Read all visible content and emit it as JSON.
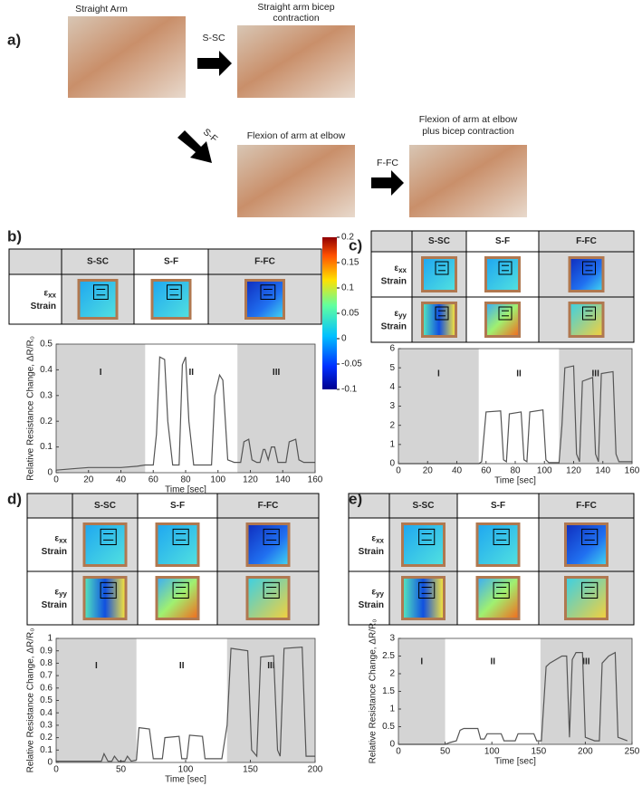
{
  "panel_a": {
    "label": "a)",
    "photos": [
      {
        "caption": [
          "Straight Arm"
        ]
      },
      {
        "caption": [
          "Straight arm bicep",
          "contraction"
        ]
      },
      {
        "caption": [
          "Flexion of arm at elbow"
        ]
      },
      {
        "caption": [
          "Flexion of arm at elbow",
          "plus bicep contraction"
        ]
      }
    ],
    "arrows": [
      "S-SC",
      "S-F",
      "F-FC"
    ]
  },
  "colorbar": {
    "lim": [
      -0.1,
      0.2
    ],
    "ticks": [
      0.2,
      0.15,
      0.1,
      0.05,
      0,
      -0.05,
      -0.1
    ]
  },
  "tables": [
    {
      "columns": [
        "S-SC",
        "S-F",
        "F-FC"
      ],
      "rows": [
        {
          "symbol": "ε",
          "sub": "xx",
          "text": "Strain"
        }
      ]
    },
    {
      "columns": [
        "S-SC",
        "S-F",
        "F-FC"
      ],
      "rows": [
        {
          "symbol": "ε",
          "sub": "xx",
          "text": "Strain"
        },
        {
          "symbol": "ε",
          "sub": "yy",
          "text": "Strain"
        }
      ]
    },
    {
      "columns": [
        "S-SC",
        "S-F",
        "F-FC"
      ],
      "rows": [
        {
          "symbol": "ε",
          "sub": "xx",
          "text": "Strain"
        },
        {
          "symbol": "ε",
          "sub": "yy",
          "text": "Strain"
        }
      ]
    },
    {
      "columns": [
        "S-SC",
        "S-F",
        "F-FC"
      ],
      "rows": [
        {
          "symbol": "ε",
          "sub": "xx",
          "text": "Strain"
        },
        {
          "symbol": "ε",
          "sub": "yy",
          "text": "Strain"
        }
      ]
    }
  ],
  "chart_data": [
    {
      "type": "line",
      "panel": "b)",
      "xlabel": "Time [sec]",
      "ylabel": "Relative Resistance Change, ΔR/R₀",
      "color": "#555555",
      "xlim": [
        0,
        160
      ],
      "ylim": [
        0,
        0.5
      ],
      "xticks": [
        0,
        20,
        40,
        60,
        80,
        100,
        120,
        140,
        160
      ],
      "yticks": [
        0,
        0.1,
        0.2,
        0.3,
        0.4,
        0.5
      ],
      "regions": [
        {
          "label": "I",
          "range": [
            0,
            55
          ],
          "shaded": true
        },
        {
          "label": "II",
          "range": [
            55,
            112
          ],
          "shaded": false
        },
        {
          "label": "III",
          "range": [
            112,
            160
          ],
          "shaded": true
        }
      ],
      "x": [
        0,
        10,
        20,
        30,
        40,
        50,
        55,
        60,
        62,
        64,
        67,
        69,
        72,
        76,
        78,
        80,
        82,
        85,
        90,
        96,
        98,
        101,
        103,
        106,
        110,
        114,
        116,
        119,
        121,
        124,
        126,
        128,
        129,
        131,
        133,
        135,
        137,
        140,
        142,
        144,
        148,
        150,
        153,
        160
      ],
      "values": [
        0.01,
        0.015,
        0.02,
        0.02,
        0.02,
        0.025,
        0.03,
        0.03,
        0.15,
        0.45,
        0.44,
        0.2,
        0.03,
        0.03,
        0.42,
        0.45,
        0.2,
        0.03,
        0.03,
        0.03,
        0.3,
        0.38,
        0.36,
        0.05,
        0.04,
        0.04,
        0.12,
        0.13,
        0.05,
        0.04,
        0.04,
        0.09,
        0.09,
        0.05,
        0.1,
        0.1,
        0.04,
        0.04,
        0.04,
        0.12,
        0.13,
        0.05,
        0.04,
        0.04
      ]
    },
    {
      "type": "line",
      "panel": "c)",
      "xlabel": "Time [sec]",
      "color": "#555555",
      "xlim": [
        0,
        160
      ],
      "ylim": [
        0,
        6
      ],
      "xticks": [
        0,
        20,
        40,
        60,
        80,
        100,
        120,
        140,
        160
      ],
      "yticks": [
        0,
        1,
        2,
        3,
        4,
        5,
        6
      ],
      "regions": [
        {
          "label": "I",
          "range": [
            0,
            55
          ],
          "shaded": true
        },
        {
          "label": "II",
          "range": [
            55,
            110
          ],
          "shaded": false
        },
        {
          "label": "III",
          "range": [
            110,
            160
          ],
          "shaded": true
        }
      ],
      "x": [
        0,
        20,
        40,
        55,
        57,
        60,
        70,
        72,
        74,
        76,
        84,
        86,
        88,
        90,
        99,
        101,
        103,
        110,
        112,
        114,
        120,
        122,
        124,
        126,
        133,
        135,
        137,
        139,
        147,
        149,
        151,
        160
      ],
      "values": [
        0,
        0,
        0,
        0,
        0.1,
        2.7,
        2.75,
        0.2,
        0.1,
        2.6,
        2.7,
        0.2,
        0.1,
        2.7,
        2.8,
        0.2,
        0.05,
        0.05,
        2.0,
        5.0,
        5.1,
        0.5,
        0.1,
        4.3,
        4.5,
        0.5,
        0.1,
        4.7,
        4.8,
        0.5,
        0.1,
        0.1
      ]
    },
    {
      "type": "line",
      "panel": "d)",
      "xlabel": "Time [sec]",
      "ylabel": "Relative Resistance Change, ΔR/R₀",
      "color": "#555555",
      "xlim": [
        0,
        200
      ],
      "ylim": [
        0,
        1
      ],
      "xticks": [
        0,
        50,
        100,
        150,
        200
      ],
      "yticks": [
        0,
        0.1,
        0.2,
        0.3,
        0.4,
        0.5,
        0.6,
        0.7,
        0.8,
        0.9,
        1
      ],
      "regions": [
        {
          "label": "I",
          "range": [
            0,
            62
          ],
          "shaded": true
        },
        {
          "label": "II",
          "range": [
            62,
            132
          ],
          "shaded": false
        },
        {
          "label": "III",
          "range": [
            132,
            200
          ],
          "shaded": true
        }
      ],
      "x": [
        0,
        30,
        35,
        37,
        40,
        43,
        45,
        48,
        53,
        55,
        58,
        62,
        64,
        72,
        75,
        82,
        84,
        95,
        97,
        101,
        103,
        113,
        115,
        128,
        132,
        135,
        148,
        151,
        155,
        158,
        168,
        171,
        173,
        176,
        190,
        193,
        200
      ],
      "values": [
        0.01,
        0.01,
        0.01,
        0.07,
        0.01,
        0.01,
        0.05,
        0.01,
        0.01,
        0.05,
        0.01,
        0.02,
        0.28,
        0.27,
        0.03,
        0.03,
        0.2,
        0.21,
        0.03,
        0.03,
        0.22,
        0.21,
        0.03,
        0.03,
        0.3,
        0.92,
        0.9,
        0.1,
        0.05,
        0.85,
        0.86,
        0.1,
        0.05,
        0.92,
        0.93,
        0.05,
        0.05
      ]
    },
    {
      "type": "line",
      "panel": "e)",
      "xlabel": "Time [sec]",
      "ylabel": "Relative Resistance Change, ΔR/R₀",
      "color": "#555555",
      "xlim": [
        0,
        250
      ],
      "ylim": [
        0,
        3
      ],
      "xticks": [
        0,
        50,
        100,
        150,
        200,
        250
      ],
      "yticks": [
        0,
        0.5,
        1,
        1.5,
        2,
        2.5,
        3
      ],
      "regions": [
        {
          "label": "I",
          "range": [
            0,
            50
          ],
          "shaded": true
        },
        {
          "label": "II",
          "range": [
            50,
            152
          ],
          "shaded": false
        },
        {
          "label": "III",
          "range": [
            152,
            250
          ],
          "shaded": true
        }
      ],
      "x": [
        0,
        50,
        55,
        62,
        66,
        70,
        85,
        88,
        92,
        95,
        110,
        113,
        125,
        128,
        145,
        148,
        153,
        158,
        162,
        175,
        180,
        183,
        186,
        190,
        197,
        200,
        210,
        215,
        218,
        225,
        232,
        235,
        245
      ],
      "values": [
        0,
        0,
        0.05,
        0.1,
        0.4,
        0.45,
        0.45,
        0.15,
        0.15,
        0.3,
        0.3,
        0.1,
        0.1,
        0.3,
        0.3,
        0.1,
        0.1,
        2.2,
        2.3,
        2.5,
        2.5,
        0.2,
        2.4,
        2.6,
        2.6,
        0.2,
        0.1,
        0.1,
        2.3,
        2.5,
        2.6,
        0.2,
        0.1
      ]
    }
  ]
}
